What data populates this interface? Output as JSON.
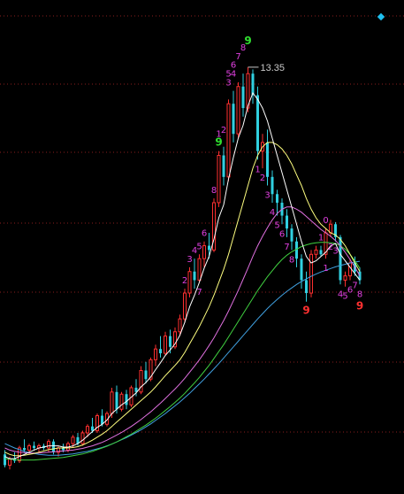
{
  "chart_data": {
    "type": "candlestick",
    "max_price_label": "13.35",
    "ylim": [
      3.8,
      14.5
    ],
    "grid": true,
    "colors": {
      "background": "#000000",
      "up": "#ff3030",
      "down": "#30d0e0",
      "ma_white": "#ffffff",
      "ma_yellow": "#ffff80",
      "ma_pink": "#e070e0",
      "ma_green": "#40d040",
      "ma_blue": "#40a0e0",
      "marker": "#20c0f0"
    },
    "candles": [
      [
        4.35,
        4.45,
        4.05,
        4.1
      ],
      [
        4.1,
        4.3,
        4.0,
        4.25
      ],
      [
        4.25,
        4.4,
        4.15,
        4.2
      ],
      [
        4.2,
        4.55,
        4.15,
        4.5
      ],
      [
        4.5,
        4.7,
        4.4,
        4.45
      ],
      [
        4.45,
        4.6,
        4.35,
        4.55
      ],
      [
        4.55,
        4.65,
        4.45,
        4.5
      ],
      [
        4.5,
        4.6,
        4.4,
        4.55
      ],
      [
        4.55,
        4.6,
        4.45,
        4.5
      ],
      [
        4.5,
        4.7,
        4.4,
        4.65
      ],
      [
        4.65,
        4.7,
        4.35,
        4.4
      ],
      [
        4.4,
        4.55,
        4.3,
        4.5
      ],
      [
        4.5,
        4.6,
        4.4,
        4.45
      ],
      [
        4.45,
        4.65,
        4.4,
        4.6
      ],
      [
        4.6,
        4.8,
        4.5,
        4.75
      ],
      [
        4.75,
        4.85,
        4.55,
        4.6
      ],
      [
        4.6,
        4.9,
        4.55,
        4.85
      ],
      [
        4.85,
        5.05,
        4.75,
        5.0
      ],
      [
        5.0,
        5.2,
        4.85,
        4.9
      ],
      [
        4.9,
        5.3,
        4.85,
        5.25
      ],
      [
        5.25,
        5.4,
        5.0,
        5.05
      ],
      [
        5.05,
        5.35,
        5.0,
        5.3
      ],
      [
        5.3,
        5.9,
        5.2,
        5.8
      ],
      [
        5.8,
        5.95,
        5.3,
        5.4
      ],
      [
        5.4,
        5.8,
        5.35,
        5.75
      ],
      [
        5.75,
        5.85,
        5.4,
        5.5
      ],
      [
        5.5,
        5.95,
        5.45,
        5.9
      ],
      [
        5.9,
        6.1,
        5.7,
        5.8
      ],
      [
        5.8,
        6.4,
        5.75,
        6.3
      ],
      [
        6.3,
        6.5,
        6.0,
        6.1
      ],
      [
        6.1,
        6.6,
        6.05,
        6.55
      ],
      [
        6.55,
        6.9,
        6.4,
        6.8
      ],
      [
        6.8,
        7.1,
        6.6,
        6.7
      ],
      [
        6.7,
        7.2,
        6.65,
        7.1
      ],
      [
        7.1,
        7.25,
        6.7,
        6.85
      ],
      [
        6.85,
        7.3,
        6.8,
        7.2
      ],
      [
        7.2,
        7.6,
        7.1,
        7.5
      ],
      [
        7.5,
        8.2,
        7.4,
        8.1
      ],
      [
        8.1,
        8.7,
        8.0,
        8.6
      ],
      [
        8.6,
        8.9,
        8.2,
        8.4
      ],
      [
        8.4,
        9.0,
        8.35,
        8.9
      ],
      [
        8.9,
        9.3,
        8.7,
        9.2
      ],
      [
        9.2,
        9.5,
        8.9,
        9.1
      ],
      [
        9.1,
        10.3,
        9.05,
        10.2
      ],
      [
        10.2,
        11.4,
        10.1,
        11.3
      ],
      [
        11.3,
        11.5,
        10.6,
        10.8
      ],
      [
        10.8,
        12.6,
        10.7,
        12.5
      ],
      [
        12.5,
        12.8,
        11.6,
        11.8
      ],
      [
        11.8,
        13.0,
        11.7,
        12.9
      ],
      [
        12.9,
        13.2,
        12.2,
        12.4
      ],
      [
        12.4,
        13.35,
        12.3,
        13.2
      ],
      [
        13.2,
        13.3,
        12.5,
        12.7
      ],
      [
        12.7,
        12.9,
        11.2,
        11.4
      ],
      [
        11.4,
        11.8,
        11.0,
        11.6
      ],
      [
        11.6,
        11.9,
        10.6,
        10.8
      ],
      [
        10.8,
        10.95,
        10.2,
        10.4
      ],
      [
        10.4,
        10.5,
        9.9,
        10.2
      ],
      [
        10.2,
        10.3,
        9.7,
        9.9
      ],
      [
        9.9,
        10.05,
        9.4,
        9.6
      ],
      [
        9.6,
        9.7,
        9.1,
        9.3
      ],
      [
        9.3,
        9.4,
        8.7,
        8.9
      ],
      [
        8.9,
        9.0,
        8.2,
        8.4
      ],
      [
        8.4,
        8.6,
        7.9,
        8.1
      ],
      [
        8.1,
        9.1,
        8.0,
        9.0
      ],
      [
        9.0,
        9.2,
        8.9,
        9.1
      ],
      [
        9.1,
        9.2,
        8.95,
        9.0
      ],
      [
        9.0,
        9.6,
        8.9,
        9.5
      ],
      [
        9.5,
        9.8,
        9.4,
        9.7
      ],
      [
        9.7,
        9.75,
        9.3,
        9.4
      ],
      [
        9.4,
        9.45,
        8.3,
        8.4
      ],
      [
        8.4,
        8.6,
        8.25,
        8.5
      ],
      [
        8.5,
        8.9,
        8.4,
        8.8
      ],
      [
        8.8,
        8.95,
        8.5,
        8.6
      ],
      [
        8.6,
        8.7,
        8.3,
        8.4
      ]
    ],
    "ma_white": [
      4.3,
      4.25,
      4.25,
      4.3,
      4.35,
      4.4,
      4.45,
      4.5,
      4.52,
      4.55,
      4.55,
      4.55,
      4.52,
      4.52,
      4.55,
      4.6,
      4.68,
      4.78,
      4.88,
      4.98,
      5.05,
      5.15,
      5.3,
      5.4,
      5.5,
      5.58,
      5.68,
      5.78,
      5.92,
      6.02,
      6.15,
      6.32,
      6.48,
      6.65,
      6.78,
      6.92,
      7.12,
      7.42,
      7.78,
      8.05,
      8.35,
      8.68,
      8.95,
      9.35,
      9.85,
      10.15,
      10.75,
      11.25,
      11.7,
      12.0,
      12.45,
      12.75,
      12.6,
      12.4,
      12.1,
      11.7,
      11.3,
      10.9,
      10.5,
      10.1,
      9.7,
      9.3,
      8.95,
      8.8,
      8.85,
      8.95,
      9.05,
      9.2,
      9.25,
      9.0,
      8.85,
      8.7,
      8.55,
      8.4
    ],
    "ma_yellow": [
      4.4,
      4.35,
      4.32,
      4.32,
      4.33,
      4.35,
      4.37,
      4.4,
      4.43,
      4.46,
      4.48,
      4.5,
      4.5,
      4.5,
      4.51,
      4.53,
      4.57,
      4.62,
      4.68,
      4.75,
      4.82,
      4.9,
      5.0,
      5.1,
      5.2,
      5.3,
      5.4,
      5.5,
      5.6,
      5.7,
      5.8,
      5.92,
      6.05,
      6.18,
      6.3,
      6.42,
      6.55,
      6.72,
      6.92,
      7.12,
      7.32,
      7.55,
      7.78,
      8.05,
      8.35,
      8.65,
      9.0,
      9.4,
      9.8,
      10.2,
      10.6,
      11.0,
      11.3,
      11.5,
      11.6,
      11.6,
      11.55,
      11.45,
      11.3,
      11.1,
      10.85,
      10.6,
      10.3,
      10.05,
      9.85,
      9.7,
      9.6,
      9.5,
      9.45,
      9.35,
      9.2,
      9.0,
      8.8,
      8.6
    ],
    "ma_pink": [
      4.5,
      4.45,
      4.42,
      4.4,
      4.39,
      4.38,
      4.38,
      4.38,
      4.39,
      4.4,
      4.41,
      4.42,
      4.43,
      4.44,
      4.45,
      4.47,
      4.49,
      4.52,
      4.55,
      4.59,
      4.63,
      4.68,
      4.74,
      4.8,
      4.86,
      4.93,
      5.0,
      5.08,
      5.16,
      5.25,
      5.34,
      5.44,
      5.54,
      5.65,
      5.76,
      5.87,
      5.99,
      6.12,
      6.26,
      6.4,
      6.55,
      6.71,
      6.88,
      7.06,
      7.26,
      7.46,
      7.68,
      7.92,
      8.16,
      8.42,
      8.68,
      8.95,
      9.2,
      9.42,
      9.62,
      9.8,
      9.95,
      10.05,
      10.1,
      10.1,
      10.05,
      9.98,
      9.88,
      9.78,
      9.68,
      9.58,
      9.5,
      9.42,
      9.32,
      9.2,
      9.05,
      8.88,
      8.7,
      8.5
    ],
    "ma_green": [
      4.25,
      4.24,
      4.23,
      4.22,
      4.22,
      4.22,
      4.22,
      4.23,
      4.24,
      4.25,
      4.26,
      4.27,
      4.28,
      4.3,
      4.32,
      4.34,
      4.36,
      4.39,
      4.42,
      4.46,
      4.5,
      4.54,
      4.59,
      4.64,
      4.7,
      4.76,
      4.82,
      4.89,
      4.96,
      5.03,
      5.11,
      5.19,
      5.28,
      5.37,
      5.46,
      5.56,
      5.66,
      5.77,
      5.89,
      6.01,
      6.14,
      6.28,
      6.42,
      6.58,
      6.74,
      6.9,
      7.08,
      7.26,
      7.44,
      7.62,
      7.8,
      7.98,
      8.16,
      8.32,
      8.48,
      8.62,
      8.76,
      8.88,
      8.98,
      9.06,
      9.12,
      9.18,
      9.22,
      9.25,
      9.27,
      9.28,
      9.28,
      9.27,
      9.25,
      9.2,
      9.12,
      9.0,
      8.85,
      8.68
    ],
    "ma_blue": [
      4.6,
      4.55,
      4.5,
      4.46,
      4.42,
      4.39,
      4.37,
      4.35,
      4.34,
      4.33,
      4.33,
      4.33,
      4.34,
      4.35,
      4.36,
      4.38,
      4.4,
      4.42,
      4.45,
      4.48,
      4.51,
      4.55,
      4.59,
      4.64,
      4.69,
      4.74,
      4.8,
      4.86,
      4.92,
      4.99,
      5.06,
      5.14,
      5.22,
      5.3,
      5.39,
      5.48,
      5.57,
      5.67,
      5.77,
      5.88,
      5.99,
      6.1,
      6.22,
      6.34,
      6.46,
      6.59,
      6.72,
      6.85,
      6.98,
      7.11,
      7.24,
      7.37,
      7.5,
      7.62,
      7.74,
      7.85,
      7.95,
      8.05,
      8.14,
      8.22,
      8.3,
      8.37,
      8.43,
      8.49,
      8.54,
      8.59,
      8.63,
      8.67,
      8.71,
      8.74,
      8.77,
      8.8,
      8.82,
      8.84
    ],
    "counts": [
      {
        "i": 37,
        "text": "2",
        "cls": "mag",
        "pos": "above"
      },
      {
        "i": 38,
        "text": "3",
        "cls": "mag",
        "pos": "above"
      },
      {
        "i": 39,
        "text": "4",
        "cls": "mag",
        "pos": "above"
      },
      {
        "i": 40,
        "text": "5",
        "cls": "mag",
        "pos": "above"
      },
      {
        "i": 40,
        "text": "7",
        "cls": "mag",
        "pos": "below"
      },
      {
        "i": 41,
        "text": "6",
        "cls": "mag",
        "pos": "above"
      },
      {
        "i": 43,
        "text": "8",
        "cls": "mag",
        "pos": "above"
      },
      {
        "i": 44,
        "text": "9",
        "cls": "grn",
        "pos": "above"
      },
      {
        "i": 44,
        "text": "1",
        "cls": "mag",
        "pos": "above2"
      },
      {
        "i": 45,
        "text": "2",
        "cls": "mag",
        "pos": "above2"
      },
      {
        "i": 46,
        "text": "3",
        "cls": "mag",
        "pos": "above2"
      },
      {
        "i": 47,
        "text": "4",
        "cls": "mag",
        "pos": "above2"
      },
      {
        "i": 46,
        "text": "5",
        "cls": "mag",
        "pos": "top"
      },
      {
        "i": 47,
        "text": "6",
        "cls": "mag",
        "pos": "top"
      },
      {
        "i": 48,
        "text": "7",
        "cls": "mag",
        "pos": "top"
      },
      {
        "i": 49,
        "text": "8",
        "cls": "mag",
        "pos": "top"
      },
      {
        "i": 50,
        "text": "9",
        "cls": "grn",
        "pos": "top"
      },
      {
        "i": 52,
        "text": "1",
        "cls": "mag",
        "pos": "below"
      },
      {
        "i": 53,
        "text": "2",
        "cls": "mag",
        "pos": "below"
      },
      {
        "i": 54,
        "text": "3",
        "cls": "mag",
        "pos": "below"
      },
      {
        "i": 55,
        "text": "4",
        "cls": "mag",
        "pos": "below"
      },
      {
        "i": 56,
        "text": "5",
        "cls": "mag",
        "pos": "below"
      },
      {
        "i": 57,
        "text": "6",
        "cls": "mag",
        "pos": "below"
      },
      {
        "i": 58,
        "text": "7",
        "cls": "mag",
        "pos": "below"
      },
      {
        "i": 59,
        "text": "8",
        "cls": "mag",
        "pos": "below"
      },
      {
        "i": 62,
        "text": "9",
        "cls": "red",
        "pos": "below"
      },
      {
        "i": 65,
        "text": "1",
        "cls": "mag",
        "pos": "above"
      },
      {
        "i": 66,
        "text": "0",
        "cls": "mag",
        "pos": "above"
      },
      {
        "i": 66,
        "text": "1",
        "cls": "mag",
        "pos": "below"
      },
      {
        "i": 67,
        "text": "2",
        "cls": "mag",
        "pos": "below"
      },
      {
        "i": 68,
        "text": "3",
        "cls": "mag",
        "pos": "below"
      },
      {
        "i": 69,
        "text": "4",
        "cls": "mag",
        "pos": "below"
      },
      {
        "i": 70,
        "text": "5",
        "cls": "mag",
        "pos": "below"
      },
      {
        "i": 71,
        "text": "6",
        "cls": "mag",
        "pos": "below"
      },
      {
        "i": 72,
        "text": "7",
        "cls": "mag",
        "pos": "below"
      },
      {
        "i": 73,
        "text": "8",
        "cls": "mag",
        "pos": "below"
      },
      {
        "i": 73,
        "text": "9",
        "cls": "red",
        "pos": "below2"
      }
    ]
  }
}
